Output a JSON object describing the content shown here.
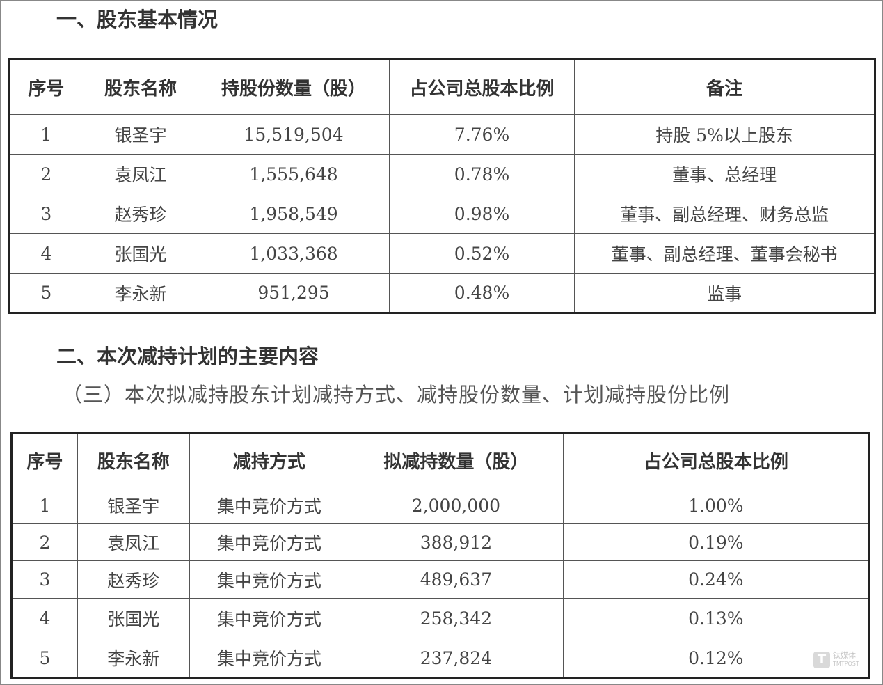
{
  "section1": {
    "title": "一、股东基本情况",
    "headers": [
      "序号",
      "股东名称",
      "持股份数量（股）",
      "占公司总股本比例",
      "备注"
    ],
    "rows": [
      [
        "1",
        "银圣宇",
        "15,519,504",
        "7.76%",
        "持股 5%以上股东"
      ],
      [
        "2",
        "袁凤江",
        "1,555,648",
        "0.78%",
        "董事、总经理"
      ],
      [
        "3",
        "赵秀珍",
        "1,958,549",
        "0.98%",
        "董事、副总经理、财务总监"
      ],
      [
        "4",
        "张国光",
        "1,033,368",
        "0.52%",
        "董事、副总经理、董事会秘书"
      ],
      [
        "5",
        "李永新",
        "951,295",
        "0.48%",
        "监事"
      ]
    ]
  },
  "section2": {
    "title": "二、本次减持计划的主要内容",
    "subtitle": "（三）本次拟减持股东计划减持方式、减持股份数量、计划减持股份比例",
    "headers": [
      "序号",
      "股东名称",
      "减持方式",
      "拟减持数量（股）",
      "占公司总股本比例"
    ],
    "rows": [
      [
        "1",
        "银圣宇",
        "集中竞价方式",
        "2,000,000",
        "1.00%"
      ],
      [
        "2",
        "袁凤江",
        "集中竞价方式",
        "388,912",
        "0.19%"
      ],
      [
        "3",
        "赵秀珍",
        "集中竞价方式",
        "489,637",
        "0.24%"
      ],
      [
        "4",
        "张国光",
        "集中竞价方式",
        "258,342",
        "0.13%"
      ],
      [
        "5",
        "李永新",
        "集中竞价方式",
        "237,824",
        "0.12%"
      ]
    ]
  },
  "watermark": {
    "cn": "钛媒体",
    "en": "TMTPOST"
  }
}
